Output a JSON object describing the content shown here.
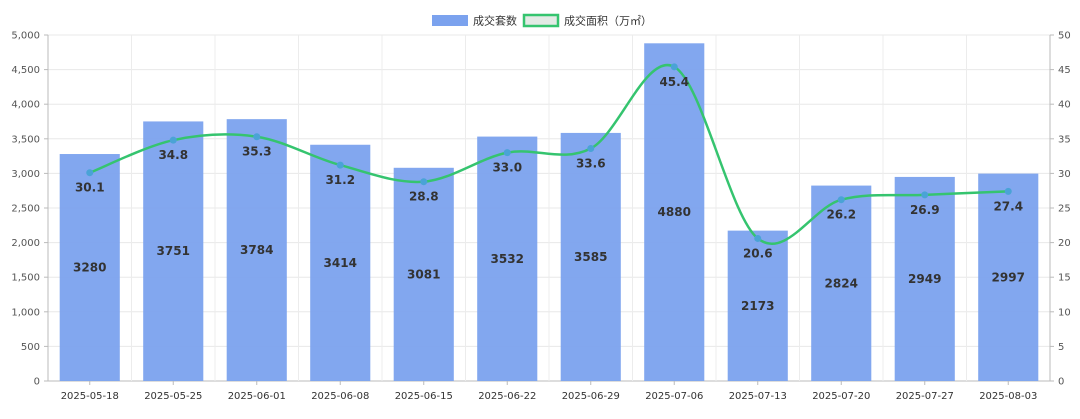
{
  "chart_data": {
    "type": "bar",
    "categories": [
      "2025-05-18",
      "2025-05-25",
      "2025-06-01",
      "2025-06-08",
      "2025-06-15",
      "2025-06-22",
      "2025-06-29",
      "2025-07-06",
      "2025-07-13",
      "2025-07-20",
      "2025-07-27",
      "2025-08-03"
    ],
    "series": [
      {
        "name": "成交套数",
        "type": "bar",
        "axis": "left",
        "color": "#7ba2ee",
        "values": [
          3280,
          3751,
          3784,
          3414,
          3081,
          3532,
          3585,
          4880,
          2173,
          2824,
          2949,
          2997
        ],
        "labels": [
          "3280",
          "3751",
          "3784",
          "3414",
          "3081",
          "3532",
          "3585",
          "4880",
          "2173",
          "2824",
          "2949",
          "2997"
        ]
      },
      {
        "name": "成交面积（万㎡）",
        "type": "line",
        "axis": "right",
        "color": "#35c46f",
        "marker_color": "#4aa3d6",
        "values": [
          30.1,
          34.8,
          35.3,
          31.2,
          28.8,
          33.0,
          33.6,
          45.4,
          20.6,
          26.2,
          26.9,
          27.4
        ],
        "labels": [
          "30.1",
          "34.8",
          "35.3",
          "31.2",
          "28.8",
          "33.0",
          "33.6",
          "45.4",
          "20.6",
          "26.2",
          "26.9",
          "27.4"
        ]
      }
    ],
    "y_left": {
      "min": 0,
      "max": 5000,
      "step": 500,
      "ticks": [
        "0",
        "500",
        "1,000",
        "1,500",
        "2,000",
        "2,500",
        "3,000",
        "3,500",
        "4,000",
        "4,500",
        "5,000"
      ]
    },
    "y_right": {
      "min": 0,
      "max": 50,
      "step": 5,
      "ticks": [
        "0",
        "5",
        "10",
        "15",
        "20",
        "25",
        "30",
        "35",
        "40",
        "45",
        "50"
      ]
    },
    "grid": true,
    "legend_position": "top-center",
    "xlabel": "",
    "ylabel": ""
  }
}
